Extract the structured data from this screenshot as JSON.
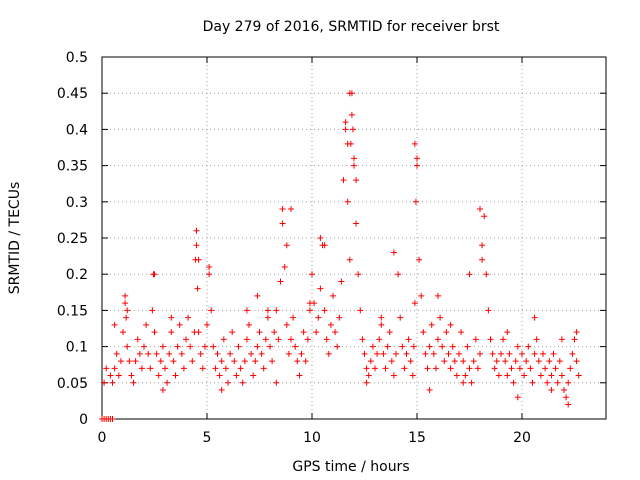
{
  "chart_data": {
    "type": "scatter",
    "title": "Day 279 of 2016, SRMTID for receiver brst",
    "xlabel": "GPS time / hours",
    "ylabel": "SRMTID / TECUs",
    "xlim": [
      0,
      24
    ],
    "ylim": [
      0,
      0.5
    ],
    "xticks": [
      0,
      5,
      10,
      15,
      20
    ],
    "xtick_labels": [
      "0",
      "5",
      "10",
      "15",
      "20"
    ],
    "yticks": [
      0,
      0.05,
      0.1,
      0.15,
      0.2,
      0.25,
      0.3,
      0.35,
      0.4,
      0.45,
      0.5
    ],
    "ytick_labels": [
      "0",
      "0.05",
      "0.1",
      "0.15",
      "0.2",
      "0.25",
      "0.3",
      "0.35",
      "0.4",
      "0.45",
      "0.5"
    ],
    "grid": true,
    "marker": "plus",
    "color": "#ff0000",
    "series": [
      {
        "name": "SRMTID",
        "x": [
          0.0,
          0.1,
          0.2,
          0.3,
          0.4,
          0.5,
          0.1,
          0.2,
          0.4,
          0.5,
          0.6,
          0.7,
          0.8,
          0.9,
          1.0,
          1.1,
          1.15,
          1.2,
          1.3,
          1.4,
          1.5,
          1.6,
          1.7,
          1.8,
          1.9,
          2.0,
          2.1,
          2.2,
          2.3,
          2.4,
          2.45,
          2.5,
          2.6,
          2.7,
          2.8,
          2.9,
          3.0,
          3.1,
          3.2,
          3.3,
          3.4,
          3.5,
          3.6,
          3.7,
          3.8,
          3.9,
          4.0,
          4.1,
          4.2,
          4.3,
          4.4,
          4.45,
          4.5,
          4.55,
          4.6,
          4.7,
          4.8,
          4.9,
          5.0,
          5.1,
          5.2,
          5.3,
          5.4,
          5.5,
          5.6,
          5.7,
          5.8,
          5.9,
          6.0,
          6.1,
          6.2,
          6.3,
          6.4,
          6.5,
          6.6,
          6.7,
          6.8,
          6.9,
          7.0,
          7.1,
          7.2,
          7.3,
          7.4,
          7.5,
          7.6,
          7.7,
          7.8,
          7.9,
          8.0,
          8.1,
          8.2,
          8.3,
          8.4,
          8.5,
          8.6,
          8.7,
          8.8,
          8.9,
          9.0,
          9.1,
          9.2,
          9.3,
          9.4,
          9.5,
          9.6,
          9.7,
          9.8,
          9.9,
          10.0,
          10.1,
          10.2,
          10.3,
          10.4,
          10.5,
          10.6,
          10.7,
          10.8,
          10.9,
          11.0,
          11.1,
          11.2,
          11.3,
          11.4,
          11.5,
          11.6,
          11.7,
          11.8,
          11.85,
          11.9,
          11.95,
          12.0,
          12.1,
          12.2,
          12.3,
          12.4,
          12.5,
          12.6,
          12.7,
          12.8,
          12.9,
          13.0,
          13.1,
          13.2,
          13.3,
          13.4,
          13.5,
          13.6,
          13.7,
          13.8,
          13.9,
          14.0,
          14.1,
          14.2,
          14.3,
          14.4,
          14.5,
          14.6,
          14.7,
          14.8,
          14.85,
          14.9,
          14.95,
          15.0,
          15.1,
          15.2,
          15.3,
          15.4,
          15.5,
          15.6,
          15.7,
          15.8,
          15.9,
          16.0,
          16.1,
          16.2,
          16.3,
          16.4,
          16.5,
          16.6,
          16.7,
          16.8,
          16.9,
          17.0,
          17.1,
          17.2,
          17.3,
          17.4,
          17.5,
          17.6,
          17.7,
          17.8,
          17.9,
          18.0,
          18.1,
          18.2,
          18.3,
          18.4,
          18.5,
          18.6,
          18.7,
          18.8,
          18.9,
          19.0,
          19.1,
          19.2,
          19.3,
          19.4,
          19.5,
          19.6,
          19.7,
          19.8,
          19.9,
          20.0,
          20.1,
          20.2,
          20.3,
          20.4,
          20.5,
          20.6,
          20.7,
          20.8,
          20.9,
          21.0,
          21.1,
          21.2,
          21.3,
          21.4,
          21.5,
          21.6,
          21.7,
          21.8,
          21.9,
          22.0,
          22.1,
          22.2,
          22.3,
          22.4,
          22.5,
          22.6,
          22.7,
          8.6,
          8.8,
          9.0,
          11.6,
          11.7,
          11.8,
          11.9,
          12.0,
          12.1,
          14.9,
          15.0,
          4.5,
          4.6,
          18.0,
          18.1,
          2.5,
          5.1,
          10.4,
          10.6,
          13.9,
          17.5,
          1.1,
          1.2,
          6.9,
          7.4,
          16.0,
          20.6,
          22.6,
          0.6,
          3.3,
          7.9,
          9.9,
          13.3,
          16.6,
          19.3,
          21.9,
          2.9,
          5.7,
          8.3,
          12.6,
          15.6,
          17.2,
          19.8,
          21.4,
          22.2
        ],
        "y": [
          0.0,
          0.0,
          0.0,
          0.0,
          0.0,
          0.0,
          0.05,
          0.07,
          0.06,
          0.05,
          0.07,
          0.09,
          0.06,
          0.08,
          0.12,
          0.16,
          0.14,
          0.1,
          0.08,
          0.06,
          0.05,
          0.08,
          0.11,
          0.09,
          0.07,
          0.1,
          0.13,
          0.09,
          0.07,
          0.15,
          0.2,
          0.12,
          0.09,
          0.06,
          0.08,
          0.1,
          0.07,
          0.05,
          0.09,
          0.12,
          0.08,
          0.06,
          0.1,
          0.13,
          0.09,
          0.07,
          0.11,
          0.14,
          0.1,
          0.08,
          0.12,
          0.22,
          0.26,
          0.18,
          0.12,
          0.09,
          0.07,
          0.1,
          0.13,
          0.2,
          0.15,
          0.1,
          0.07,
          0.09,
          0.06,
          0.08,
          0.11,
          0.07,
          0.05,
          0.09,
          0.12,
          0.08,
          0.06,
          0.1,
          0.07,
          0.05,
          0.08,
          0.11,
          0.13,
          0.09,
          0.06,
          0.08,
          0.1,
          0.12,
          0.09,
          0.07,
          0.11,
          0.14,
          0.1,
          0.08,
          0.12,
          0.15,
          0.11,
          0.19,
          0.27,
          0.21,
          0.13,
          0.09,
          0.11,
          0.14,
          0.1,
          0.08,
          0.06,
          0.09,
          0.12,
          0.08,
          0.11,
          0.15,
          0.2,
          0.16,
          0.12,
          0.14,
          0.18,
          0.24,
          0.15,
          0.11,
          0.09,
          0.13,
          0.17,
          0.12,
          0.1,
          0.14,
          0.19,
          0.33,
          0.4,
          0.3,
          0.22,
          0.38,
          0.45,
          0.4,
          0.35,
          0.27,
          0.2,
          0.15,
          0.11,
          0.09,
          0.07,
          0.06,
          0.08,
          0.1,
          0.07,
          0.09,
          0.11,
          0.13,
          0.09,
          0.07,
          0.1,
          0.12,
          0.08,
          0.06,
          0.09,
          0.2,
          0.14,
          0.1,
          0.07,
          0.09,
          0.11,
          0.08,
          0.06,
          0.1,
          0.16,
          0.3,
          0.36,
          0.22,
          0.17,
          0.12,
          0.09,
          0.07,
          0.1,
          0.13,
          0.09,
          0.07,
          0.11,
          0.14,
          0.1,
          0.08,
          0.12,
          0.09,
          0.07,
          0.1,
          0.08,
          0.06,
          0.09,
          0.12,
          0.08,
          0.06,
          0.1,
          0.07,
          0.05,
          0.08,
          0.11,
          0.07,
          0.09,
          0.22,
          0.28,
          0.2,
          0.15,
          0.11,
          0.09,
          0.07,
          0.08,
          0.06,
          0.09,
          0.11,
          0.08,
          0.06,
          0.09,
          0.07,
          0.05,
          0.08,
          0.1,
          0.07,
          0.09,
          0.06,
          0.08,
          0.1,
          0.07,
          0.05,
          0.09,
          0.11,
          0.08,
          0.06,
          0.09,
          0.07,
          0.05,
          0.08,
          0.06,
          0.09,
          0.07,
          0.05,
          0.08,
          0.06,
          0.04,
          0.03,
          0.05,
          0.07,
          0.09,
          0.11,
          0.08,
          0.06,
          0.29,
          0.24,
          0.29,
          0.41,
          0.38,
          0.45,
          0.42,
          0.36,
          0.33,
          0.38,
          0.35,
          0.24,
          0.22,
          0.29,
          0.24,
          0.2,
          0.21,
          0.25,
          0.24,
          0.23,
          0.2,
          0.17,
          0.15,
          0.15,
          0.17,
          0.17,
          0.14,
          0.12,
          0.13,
          0.14,
          0.15,
          0.16,
          0.14,
          0.13,
          0.12,
          0.11,
          0.04,
          0.04,
          0.05,
          0.05,
          0.04,
          0.05,
          0.03,
          0.04,
          0.02
        ]
      }
    ]
  }
}
